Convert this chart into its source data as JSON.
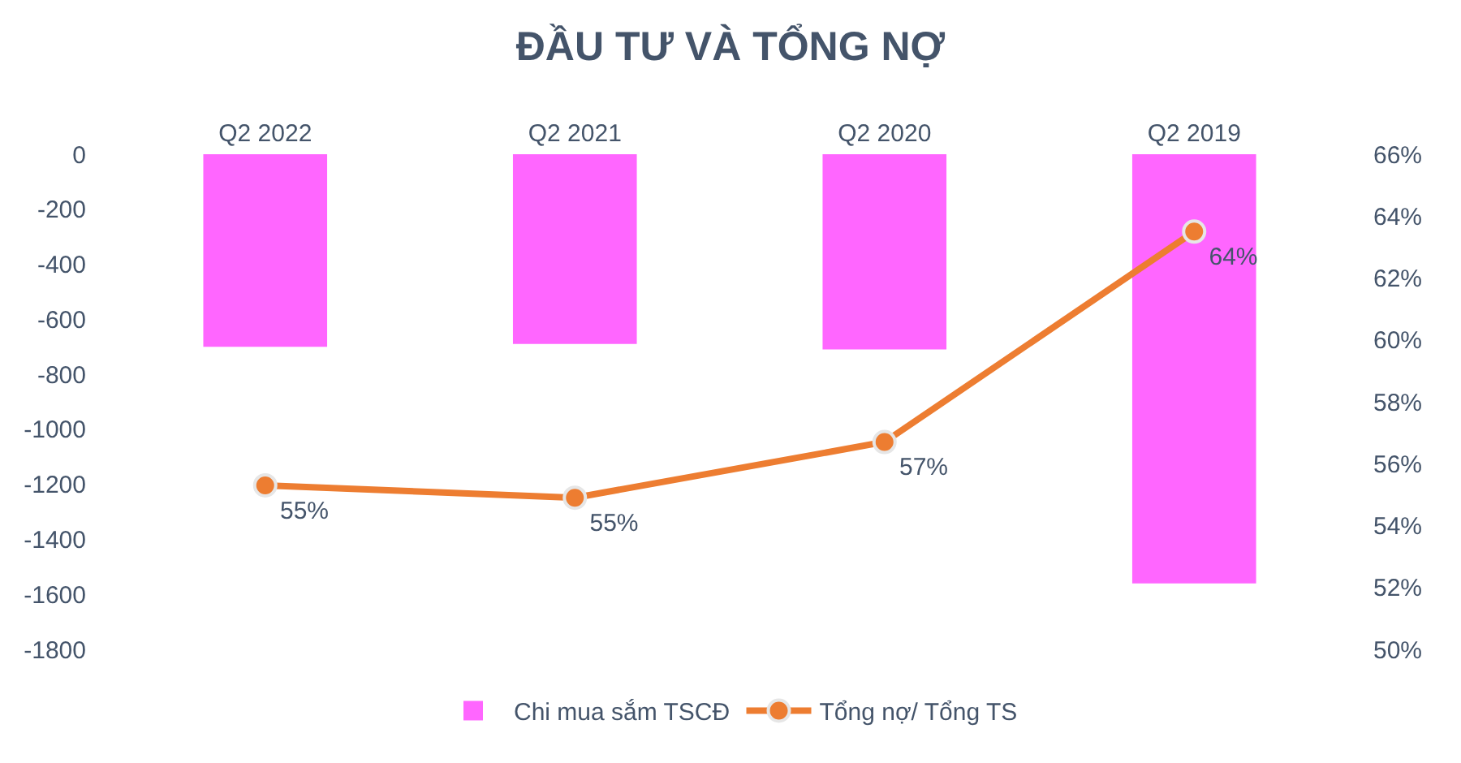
{
  "chart_data": {
    "type": "bar",
    "title": "ĐẦU TƯ VÀ TỔNG NỢ",
    "categories": [
      "Q2 2022",
      "Q2 2021",
      "Q2 2020",
      "Q2 2019"
    ],
    "series": [
      {
        "name": "Chi mua sắm TSCĐ",
        "color": "#ff66ff",
        "values": [
          -700,
          -690,
          -710,
          -1560
        ]
      },
      {
        "name": "Tổng nợ/ Tổng TS",
        "type": "line",
        "axis": "y2",
        "color": "#ed7d31",
        "values": [
          55.3,
          54.9,
          56.7,
          63.5
        ],
        "value_labels": [
          "55%",
          "55%",
          "57%",
          "64%"
        ]
      }
    ],
    "ylim": [
      -1800,
      0
    ],
    "yticks": [
      0,
      -200,
      -400,
      -600,
      -800,
      -1000,
      -1200,
      -1400,
      -1600,
      -1800
    ],
    "y2lim": [
      50,
      66
    ],
    "y2ticks": [
      {
        "value": 50,
        "label": "50%"
      },
      {
        "value": 52,
        "label": "52%"
      },
      {
        "value": 54,
        "label": "54%"
      },
      {
        "value": 56,
        "label": "56%"
      },
      {
        "value": 58,
        "label": "58%"
      },
      {
        "value": 60,
        "label": "60%"
      },
      {
        "value": 62,
        "label": "62%"
      },
      {
        "value": 64,
        "label": "64%"
      },
      {
        "value": 66,
        "label": "66%"
      }
    ],
    "legend": "bottom",
    "grid": false,
    "marker": "circle",
    "line_style": "solid"
  }
}
